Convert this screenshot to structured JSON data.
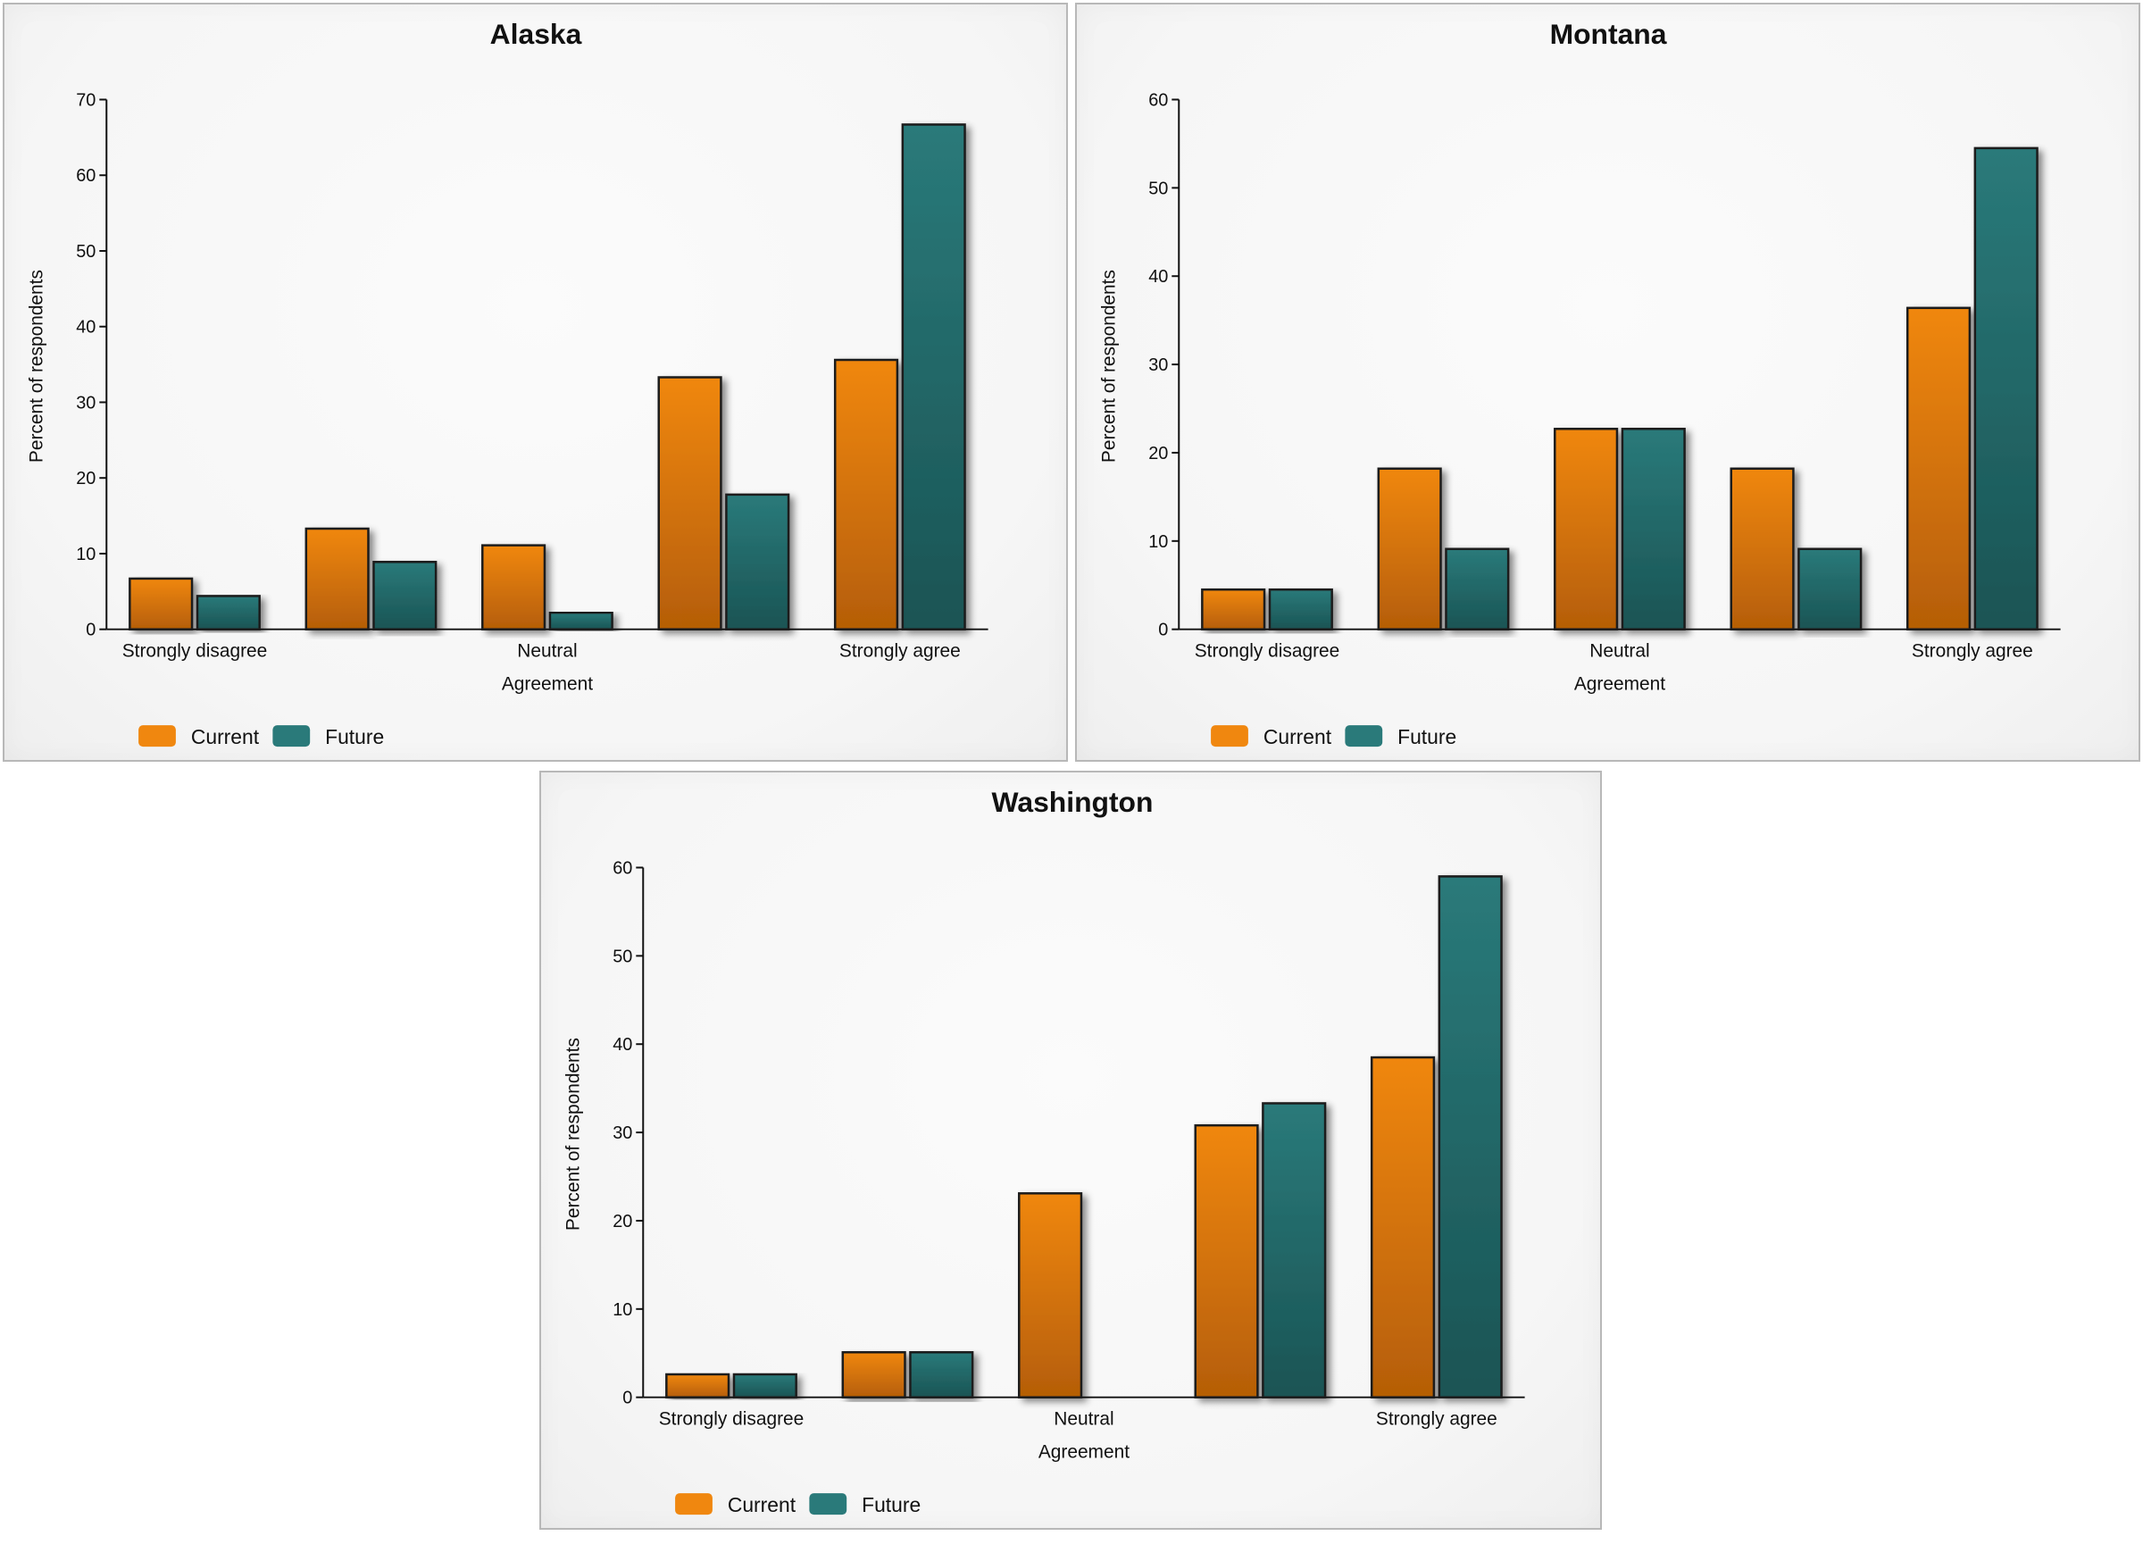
{
  "colors": {
    "current": "#f0870f",
    "current_dark": "#b55e06",
    "future": "#2a7a7a",
    "future_dark": "#1a5454",
    "axis": "#111111",
    "text": "#111111"
  },
  "chart_data": [
    {
      "type": "bar",
      "title": "Alaska",
      "xlabel": "Agreement",
      "ylabel": "Percent of respondents",
      "ylim": [
        0,
        70
      ],
      "yticks": [
        0,
        10,
        20,
        30,
        40,
        50,
        60,
        70
      ],
      "categories": [
        "Strongly disagree",
        "",
        "Neutral",
        "",
        "Strongly agree"
      ],
      "series": [
        {
          "name": "Current",
          "values": [
            6.7,
            13.3,
            11.1,
            33.3,
            35.6
          ]
        },
        {
          "name": "Future",
          "values": [
            4.4,
            8.9,
            2.2,
            17.8,
            66.7
          ]
        }
      ],
      "legend": "bottom-left"
    },
    {
      "type": "bar",
      "title": "Montana",
      "xlabel": "Agreement",
      "ylabel": "Percent of respondents",
      "ylim": [
        0,
        60
      ],
      "yticks": [
        0,
        10,
        20,
        30,
        40,
        50,
        60
      ],
      "categories": [
        "Strongly disagree",
        "",
        "Neutral",
        "",
        "Strongly agree"
      ],
      "series": [
        {
          "name": "Current",
          "values": [
            4.5,
            18.2,
            22.7,
            18.2,
            36.4
          ]
        },
        {
          "name": "Future",
          "values": [
            4.5,
            9.1,
            22.7,
            9.1,
            54.5
          ]
        }
      ],
      "legend": "bottom-left"
    },
    {
      "type": "bar",
      "title": "Washington",
      "xlabel": "Agreement",
      "ylabel": "Percent of respondents",
      "ylim": [
        0,
        60
      ],
      "yticks": [
        0,
        10,
        20,
        30,
        40,
        50,
        60
      ],
      "categories": [
        "Strongly disagree",
        "",
        "Neutral",
        "",
        "Strongly agree"
      ],
      "series": [
        {
          "name": "Current",
          "values": [
            2.6,
            5.1,
            23.1,
            30.8,
            38.5
          ]
        },
        {
          "name": "Future",
          "values": [
            2.6,
            5.1,
            0,
            33.3,
            59.0
          ]
        }
      ],
      "legend": "bottom-left"
    }
  ]
}
